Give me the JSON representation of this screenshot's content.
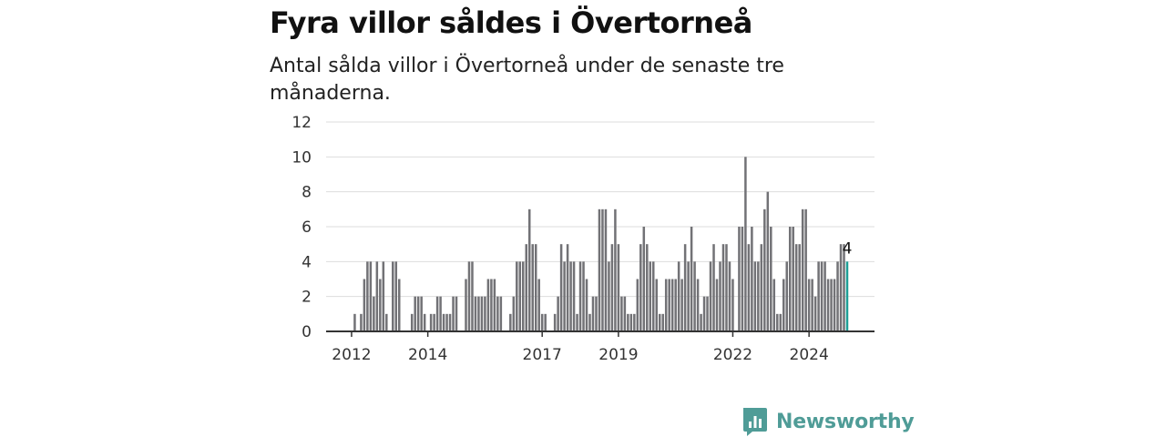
{
  "header": {
    "title": "Fyra villor såldes i Övertorneå",
    "subtitle": "Antal sålda villor i Övertorneå under de senaste tre månaderna."
  },
  "brand": {
    "name": "Newsworthy",
    "color": "#4f9c97",
    "icon": "bar-chart-speech-bubble-icon"
  },
  "chart_data": {
    "type": "bar",
    "title": "Fyra villor såldes i Övertorneå",
    "subtitle": "Antal sålda villor i Övertorneå under de senaste tre månaderna.",
    "xlabel": "",
    "ylabel": "",
    "x_start": "2011-08",
    "x_end": "2025-01",
    "x_frequency": "monthly",
    "x_ticks": [
      "2012",
      "2014",
      "2017",
      "2019",
      "2022",
      "2024"
    ],
    "x_tick_dates": [
      "2012-01",
      "2014-01",
      "2017-01",
      "2019-01",
      "2022-01",
      "2024-01"
    ],
    "ylim": [
      0,
      12
    ],
    "y_ticks": [
      0,
      2,
      4,
      6,
      8,
      10,
      12
    ],
    "grid": true,
    "bar_color": "#727276",
    "highlight_color": "#1d9e96",
    "highlight_label": "4",
    "values": [
      0,
      0,
      0,
      0,
      0,
      0,
      1,
      0,
      1,
      3,
      4,
      4,
      2,
      4,
      3,
      4,
      1,
      0,
      4,
      4,
      3,
      0,
      0,
      0,
      1,
      2,
      2,
      2,
      1,
      0,
      1,
      1,
      2,
      2,
      1,
      1,
      1,
      2,
      2,
      0,
      0,
      3,
      4,
      4,
      2,
      2,
      2,
      2,
      3,
      3,
      3,
      2,
      2,
      0,
      0,
      1,
      2,
      4,
      4,
      4,
      5,
      7,
      5,
      5,
      3,
      1,
      1,
      0,
      0,
      1,
      2,
      5,
      4,
      5,
      4,
      4,
      1,
      4,
      4,
      3,
      1,
      2,
      2,
      7,
      7,
      7,
      4,
      5,
      7,
      5,
      2,
      2,
      1,
      1,
      1,
      3,
      5,
      6,
      5,
      4,
      4,
      3,
      1,
      1,
      3,
      3,
      3,
      3,
      4,
      3,
      5,
      4,
      6,
      4,
      3,
      1,
      2,
      2,
      4,
      5,
      3,
      4,
      5,
      5,
      4,
      3,
      0,
      6,
      6,
      10,
      5,
      6,
      4,
      4,
      5,
      7,
      8,
      6,
      3,
      1,
      1,
      3,
      4,
      6,
      6,
      5,
      5,
      7,
      7,
      3,
      3,
      2,
      4,
      4,
      4,
      3,
      3,
      3,
      4,
      5,
      5,
      4
    ]
  }
}
